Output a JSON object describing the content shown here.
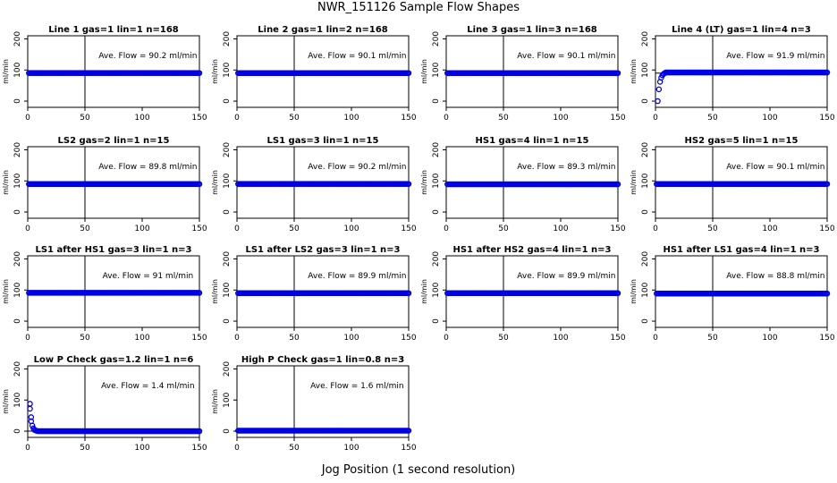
{
  "figure": {
    "title": "NWR_151126  Sample Flow Shapes",
    "xlabel": "Jog Position (1 second resolution)"
  },
  "chart_data": [
    {
      "type": "scatter",
      "title": "Line 1 gas=1 lin=1 n=168",
      "ylabel": "ml/min",
      "annotation": "Ave. Flow =  90.2  ml/min",
      "xlim": [
        0,
        150
      ],
      "ylim": [
        -20,
        210
      ],
      "xticks": [
        0,
        50,
        100,
        150
      ],
      "yticks": [
        0,
        100,
        200
      ],
      "ref_hline": 90,
      "ref_vline": 50,
      "x_range": [
        1,
        150
      ],
      "shape": "flat",
      "level": 90.2
    },
    {
      "type": "scatter",
      "title": "Line 2 gas=1 lin=2 n=168",
      "ylabel": "ml/min",
      "annotation": "Ave. Flow =  90.1  ml/min",
      "xlim": [
        0,
        150
      ],
      "ylim": [
        -20,
        210
      ],
      "xticks": [
        0,
        50,
        100,
        150
      ],
      "yticks": [
        0,
        100,
        200
      ],
      "ref_hline": 90,
      "ref_vline": 50,
      "x_range": [
        1,
        150
      ],
      "shape": "flat",
      "level": 90.1
    },
    {
      "type": "scatter",
      "title": "Line 3 gas=1 lin=3 n=168",
      "ylabel": "ml/min",
      "annotation": "Ave. Flow =  90.1  ml/min",
      "xlim": [
        0,
        150
      ],
      "ylim": [
        -20,
        210
      ],
      "xticks": [
        0,
        50,
        100,
        150
      ],
      "yticks": [
        0,
        100,
        200
      ],
      "ref_hline": 90,
      "ref_vline": 50,
      "x_range": [
        1,
        150
      ],
      "shape": "flat",
      "level": 90.1
    },
    {
      "type": "scatter",
      "title": "Line 4 (LT) gas=1 lin=4 n=3",
      "ylabel": "ml/min",
      "annotation": "Ave. Flow =  91.9  ml/min",
      "xlim": [
        0,
        150
      ],
      "ylim": [
        -20,
        210
      ],
      "xticks": [
        0,
        50,
        100,
        150
      ],
      "yticks": [
        0,
        100,
        200
      ],
      "ref_hline": 90,
      "ref_vline": 50,
      "x_range": [
        1,
        150
      ],
      "shape": "rise",
      "level": 92,
      "start_points": [
        [
          2,
          0
        ],
        [
          3,
          38
        ],
        [
          4,
          62
        ],
        [
          5,
          75
        ],
        [
          6,
          83
        ],
        [
          7,
          87
        ],
        [
          8,
          90
        ]
      ]
    },
    {
      "type": "scatter",
      "title": "LS2 gas=2 lin=1 n=15",
      "ylabel": "ml/min",
      "annotation": "Ave. Flow =  89.8  ml/min",
      "xlim": [
        0,
        150
      ],
      "ylim": [
        -20,
        210
      ],
      "xticks": [
        0,
        50,
        100,
        150
      ],
      "yticks": [
        0,
        100,
        200
      ],
      "ref_hline": 90,
      "ref_vline": 50,
      "x_range": [
        1,
        150
      ],
      "shape": "flat",
      "level": 89.8
    },
    {
      "type": "scatter",
      "title": "LS1 gas=3 lin=1 n=15",
      "ylabel": "ml/min",
      "annotation": "Ave. Flow =  90.2  ml/min",
      "xlim": [
        0,
        150
      ],
      "ylim": [
        -20,
        210
      ],
      "xticks": [
        0,
        50,
        100,
        150
      ],
      "yticks": [
        0,
        100,
        200
      ],
      "ref_hline": 90,
      "ref_vline": 50,
      "x_range": [
        1,
        150
      ],
      "shape": "flat",
      "level": 90.2
    },
    {
      "type": "scatter",
      "title": "HS1 gas=4 lin=1 n=15",
      "ylabel": "ml/min",
      "annotation": "Ave. Flow =  89.3  ml/min",
      "xlim": [
        0,
        150
      ],
      "ylim": [
        -20,
        210
      ],
      "xticks": [
        0,
        50,
        100,
        150
      ],
      "yticks": [
        0,
        100,
        200
      ],
      "ref_hline": 90,
      "ref_vline": 50,
      "x_range": [
        1,
        150
      ],
      "shape": "flat",
      "level": 89.3
    },
    {
      "type": "scatter",
      "title": "HS2 gas=5 lin=1 n=15",
      "ylabel": "ml/min",
      "annotation": "Ave. Flow =  90.1  ml/min",
      "xlim": [
        0,
        150
      ],
      "ylim": [
        -20,
        210
      ],
      "xticks": [
        0,
        50,
        100,
        150
      ],
      "yticks": [
        0,
        100,
        200
      ],
      "ref_hline": 90,
      "ref_vline": 50,
      "x_range": [
        1,
        150
      ],
      "shape": "flat",
      "level": 90.1
    },
    {
      "type": "scatter",
      "title": "LS1 after HS1 gas=3 lin=1 n=3",
      "ylabel": "ml/min",
      "annotation": "Ave. Flow =  91  ml/min",
      "xlim": [
        0,
        150
      ],
      "ylim": [
        -20,
        210
      ],
      "xticks": [
        0,
        50,
        100,
        150
      ],
      "yticks": [
        0,
        100,
        200
      ],
      "ref_hline": 90,
      "ref_vline": 50,
      "x_range": [
        1,
        150
      ],
      "shape": "flat",
      "level": 91
    },
    {
      "type": "scatter",
      "title": "LS1 after LS2 gas=3 lin=1 n=3",
      "ylabel": "ml/min",
      "annotation": "Ave. Flow =  89.9  ml/min",
      "xlim": [
        0,
        150
      ],
      "ylim": [
        -20,
        210
      ],
      "xticks": [
        0,
        50,
        100,
        150
      ],
      "yticks": [
        0,
        100,
        200
      ],
      "ref_hline": 90,
      "ref_vline": 50,
      "x_range": [
        1,
        150
      ],
      "shape": "flat",
      "level": 89.9
    },
    {
      "type": "scatter",
      "title": "HS1 after HS2 gas=4 lin=1 n=3",
      "ylabel": "ml/min",
      "annotation": "Ave. Flow =  89.9  ml/min",
      "xlim": [
        0,
        150
      ],
      "ylim": [
        -20,
        210
      ],
      "xticks": [
        0,
        50,
        100,
        150
      ],
      "yticks": [
        0,
        100,
        200
      ],
      "ref_hline": 90,
      "ref_vline": 50,
      "x_range": [
        1,
        150
      ],
      "shape": "flat",
      "level": 89.9
    },
    {
      "type": "scatter",
      "title": "HS1 after LS1 gas=4 lin=1 n=3",
      "ylabel": "ml/min",
      "annotation": "Ave. Flow =  88.8  ml/min",
      "xlim": [
        0,
        150
      ],
      "ylim": [
        -20,
        210
      ],
      "xticks": [
        0,
        50,
        100,
        150
      ],
      "yticks": [
        0,
        100,
        200
      ],
      "ref_hline": 90,
      "ref_vline": 50,
      "x_range": [
        1,
        150
      ],
      "shape": "flat",
      "level": 88.8
    },
    {
      "type": "scatter",
      "title": "Low P Check gas=1.2 lin=1 n=6",
      "ylabel": "ml/min",
      "annotation": "Ave. Flow =  1.4  ml/min",
      "xlim": [
        0,
        150
      ],
      "ylim": [
        -20,
        210
      ],
      "xticks": [
        0,
        50,
        100,
        150
      ],
      "yticks": [
        0,
        100,
        200
      ],
      "ref_hline": 0,
      "ref_vline": 50,
      "x_range": [
        1,
        150
      ],
      "shape": "decay",
      "level": 0,
      "start_points": [
        [
          2,
          88
        ],
        [
          2,
          72
        ],
        [
          3,
          45
        ],
        [
          3,
          32
        ],
        [
          4,
          18
        ],
        [
          5,
          9
        ],
        [
          6,
          4
        ],
        [
          7,
          2
        ],
        [
          8,
          1
        ]
      ]
    },
    {
      "type": "scatter",
      "title": "High P Check gas=1 lin=0.8 n=3",
      "ylabel": "ml/min",
      "annotation": "Ave. Flow =  1.6  ml/min",
      "xlim": [
        0,
        150
      ],
      "ylim": [
        -20,
        210
      ],
      "xticks": [
        0,
        50,
        100,
        150
      ],
      "yticks": [
        0,
        100,
        200
      ],
      "ref_hline": 0,
      "ref_vline": 50,
      "x_range": [
        1,
        150
      ],
      "shape": "flat",
      "level": 1.6
    }
  ]
}
